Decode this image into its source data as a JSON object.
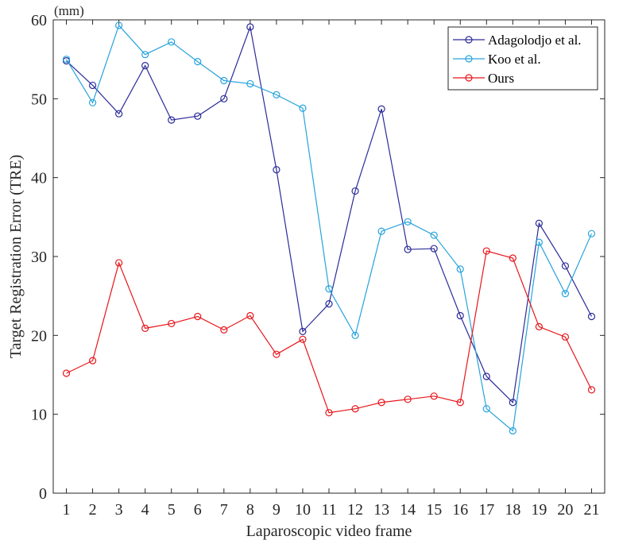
{
  "chart_data": {
    "type": "line",
    "title": "",
    "xlabel": "Laparoscopic video frame",
    "ylabel": "Target Registration Error (TRE)",
    "yunit": "(mm)",
    "x": [
      1,
      2,
      3,
      4,
      5,
      6,
      7,
      8,
      9,
      10,
      11,
      12,
      13,
      14,
      15,
      16,
      17,
      18,
      19,
      20,
      21
    ],
    "xlim": [
      0.5,
      21.5
    ],
    "ylim": [
      0,
      60
    ],
    "yticks": [
      0,
      10,
      20,
      30,
      40,
      50,
      60
    ],
    "grid": false,
    "legend_position": "top-right",
    "series": [
      {
        "name": "Adagolodjo et al.",
        "color": "#2b2b9a",
        "values": [
          54.8,
          51.7,
          48.1,
          54.2,
          47.3,
          47.8,
          50.0,
          59.1,
          41.0,
          20.5,
          24.0,
          38.3,
          48.7,
          30.9,
          31.0,
          22.5,
          14.8,
          11.5,
          34.2,
          28.8,
          22.4
        ]
      },
      {
        "name": "Koo et al.",
        "color": "#27a3dc",
        "values": [
          55.0,
          49.5,
          59.3,
          55.6,
          57.2,
          54.7,
          52.3,
          51.9,
          50.5,
          48.8,
          25.9,
          20.0,
          33.2,
          34.4,
          32.7,
          28.4,
          10.7,
          7.9,
          31.8,
          25.3,
          32.9
        ]
      },
      {
        "name": "Ours",
        "color": "#e8161b",
        "values": [
          15.2,
          16.8,
          29.2,
          20.9,
          21.5,
          22.4,
          20.7,
          22.5,
          17.6,
          19.5,
          10.2,
          10.7,
          11.5,
          11.9,
          12.3,
          11.5,
          30.7,
          29.8,
          21.1,
          19.8,
          13.1
        ]
      }
    ]
  }
}
